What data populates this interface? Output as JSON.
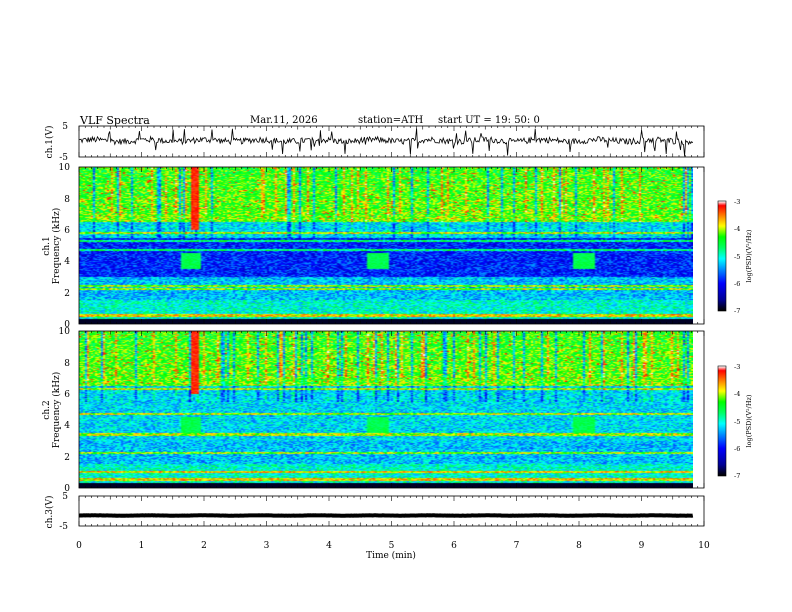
{
  "header": {
    "title": "VLF  Spectra",
    "date": "Mar.11, 2026",
    "station": "station=ATH",
    "start_ut": "start  UT  =    19: 50: 0"
  },
  "chart_data": [
    {
      "type": "line",
      "name": "ch1-voltage",
      "ylabel": "ch.1(V)",
      "ylim": [
        -5,
        5
      ],
      "yticks": [
        "5",
        "-5"
      ],
      "xlim": [
        0,
        10
      ],
      "trace_mean": 0.3,
      "trace_amplitude": 1.0
    },
    {
      "type": "heatmap",
      "name": "ch1-spectrogram",
      "ylabel": "ch.1",
      "ylabel2": "Frequency  (kHz)",
      "ylim": [
        0,
        10
      ],
      "yticks": [
        "0",
        "2",
        "4",
        "6",
        "8",
        "10"
      ],
      "xlim": [
        0,
        10
      ],
      "tone_bursts_min": [
        1.6,
        4.6,
        7.9
      ],
      "tone_burst_khz": 4,
      "strong_lines_khz": [
        0.2,
        0.5,
        2.2,
        2.4,
        4.7,
        5.3,
        5.8
      ],
      "colorbar": {
        "label": "log(PSD)(V²/Hz)",
        "range": [
          -7,
          -3
        ],
        "ticks": [
          "-3",
          "-4",
          "-5",
          "-6",
          "-7"
        ]
      }
    },
    {
      "type": "heatmap",
      "name": "ch2-spectrogram",
      "ylabel": "ch.2",
      "ylabel2": "Frequency  (kHz)",
      "ylim": [
        0,
        10
      ],
      "yticks": [
        "0",
        "2",
        "4",
        "6",
        "8",
        "10"
      ],
      "xlim": [
        0,
        10
      ],
      "tone_bursts_min": [
        1.6,
        4.6,
        7.9
      ],
      "tone_burst_khz": 4,
      "strong_lines_khz": [
        0.2,
        0.5,
        1.0,
        2.2,
        3.4,
        4.7,
        6.3
      ],
      "colorbar": {
        "label": "log(PSD)(V²/Hz)",
        "range": [
          -7,
          -3
        ],
        "ticks": [
          "-3",
          "-4",
          "-5",
          "-6",
          "-7"
        ]
      }
    },
    {
      "type": "line",
      "name": "ch3-voltage",
      "ylabel": "ch.3(V)",
      "ylim": [
        -5,
        5
      ],
      "yticks": [
        "5",
        "-5"
      ],
      "xlim": [
        0,
        10
      ],
      "trace_mean": -1.5,
      "trace_amplitude": 0.15
    }
  ],
  "x_axis": {
    "label": "Time  (min)",
    "ticks": [
      "0",
      "1",
      "2",
      "3",
      "4",
      "5",
      "6",
      "7",
      "8",
      "9",
      "10"
    ]
  },
  "colors": {
    "axis": "#000000",
    "colormap": [
      "#000000",
      "#0000b0",
      "#0000ff",
      "#0080ff",
      "#00ffff",
      "#00ff80",
      "#00ff00",
      "#ffff00",
      "#ff8000",
      "#ff0000",
      "#ffffff"
    ]
  }
}
